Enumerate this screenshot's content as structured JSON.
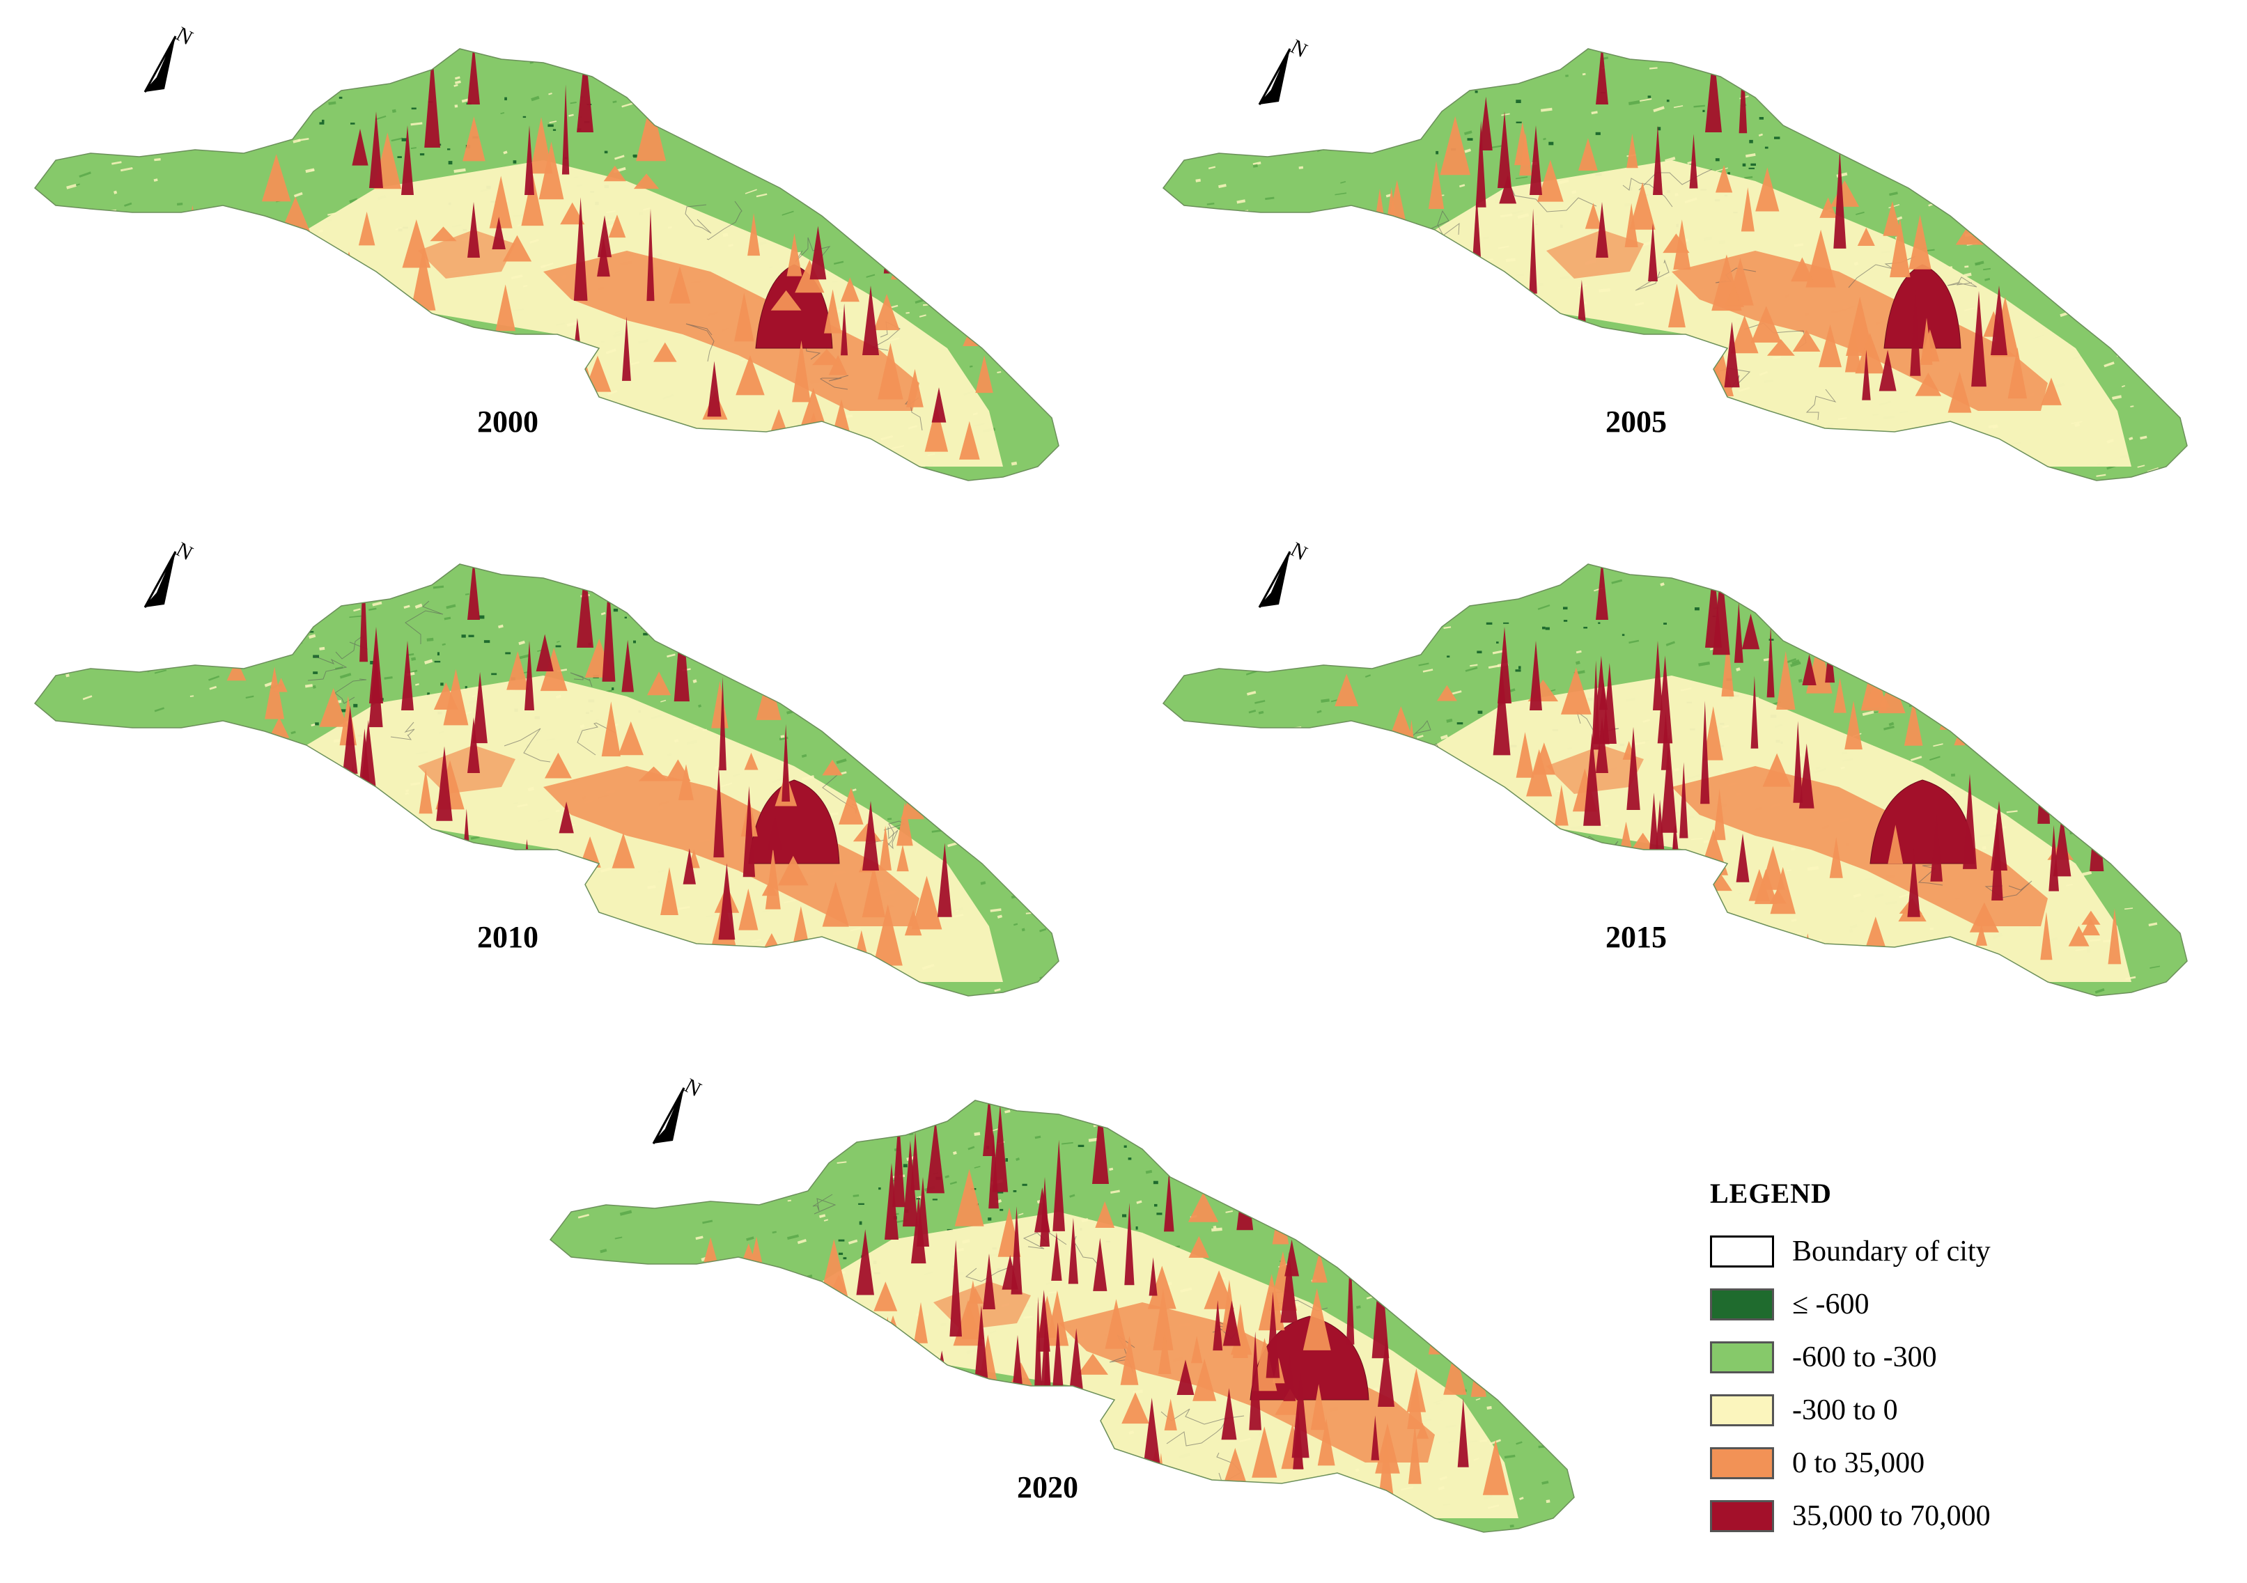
{
  "panels": [
    {
      "year": "2000",
      "intensity": 1
    },
    {
      "year": "2005",
      "intensity": 1
    },
    {
      "year": "2010",
      "intensity": 2
    },
    {
      "year": "2015",
      "intensity": 3
    },
    {
      "year": "2020",
      "intensity": 4
    }
  ],
  "north_arrow": {
    "label": "N",
    "icon": "north-arrow-icon"
  },
  "legend": {
    "title": "LEGEND",
    "items": [
      {
        "label": "Boundary of city",
        "color": "#ffffff",
        "outline": "#000000"
      },
      {
        "label": "≤ -600",
        "color": "#1f6b2e"
      },
      {
        "label": "-600 to -300",
        "color": "#86c96a"
      },
      {
        "label": "-300 to 0",
        "color": "#fbf5bd"
      },
      {
        "label": "0 to 35,000",
        "color": "#f29256"
      },
      {
        "label": "35,000 to 70,000",
        "color": "#a3102a"
      }
    ]
  }
}
